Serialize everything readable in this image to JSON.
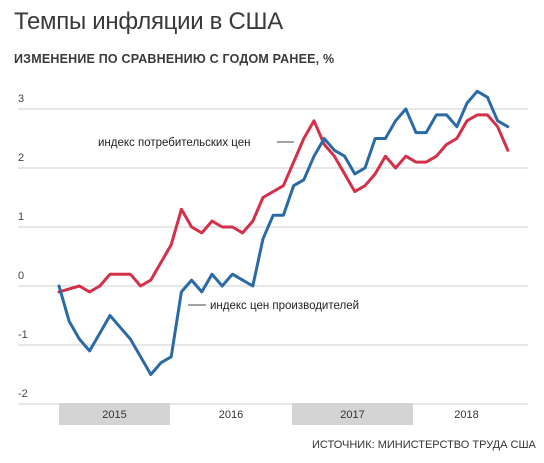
{
  "title": "Темпы инфляции в США",
  "subtitle": "ИЗМЕНЕНИЕ ПО СРАВНЕНИЮ С ГОДОМ РАНЕЕ, %",
  "source": "ИСТОЧНИК: МИНИСТЕРСТВО ТРУДА США",
  "colors": {
    "cpi": "#d43049",
    "ppi": "#2a6aa6",
    "grid": "#cfcfcf",
    "yearband": "#d4d4d4"
  },
  "chart_data": {
    "type": "line",
    "title": "Темпы инфляции в США",
    "subtitle": "ИЗМЕНЕНИЕ ПО СРАВНЕНИЮ С ГОДОМ РАНЕЕ, %",
    "xlabel": "",
    "ylabel": "",
    "ylim": [
      -2,
      3.5
    ],
    "yticks": [
      {
        "value": 3,
        "label": "3"
      },
      {
        "value": 2,
        "label": "2"
      },
      {
        "value": 1,
        "label": "1"
      },
      {
        "value": 0,
        "label": "0"
      },
      {
        "value": -1,
        "label": "-1"
      },
      {
        "value": -2,
        "label": "-2"
      }
    ],
    "years": [
      "2015",
      "2016",
      "2017",
      "2018"
    ],
    "x": [
      "2015-01",
      "2015-02",
      "2015-03",
      "2015-04",
      "2015-05",
      "2015-06",
      "2015-07",
      "2015-08",
      "2015-09",
      "2015-10",
      "2015-11",
      "2015-12",
      "2016-01",
      "2016-02",
      "2016-03",
      "2016-04",
      "2016-05",
      "2016-06",
      "2016-07",
      "2016-08",
      "2016-09",
      "2016-10",
      "2016-11",
      "2016-12",
      "2017-01",
      "2017-02",
      "2017-03",
      "2017-04",
      "2017-05",
      "2017-06",
      "2017-07",
      "2017-08",
      "2017-09",
      "2017-10",
      "2017-11",
      "2017-12",
      "2018-01",
      "2018-02",
      "2018-03",
      "2018-04",
      "2018-05",
      "2018-06",
      "2018-07",
      "2018-08",
      "2018-09"
    ],
    "series": [
      {
        "name": "индекс потребительских цен",
        "key": "cpi",
        "values": [
          -0.1,
          -0.05,
          0,
          -0.1,
          0,
          0.2,
          0.2,
          0.2,
          0,
          0.1,
          0.4,
          0.7,
          1.3,
          1.0,
          0.9,
          1.1,
          1.0,
          1.0,
          0.9,
          1.1,
          1.5,
          1.6,
          1.7,
          2.1,
          2.5,
          2.8,
          2.4,
          2.2,
          1.9,
          1.6,
          1.7,
          1.9,
          2.2,
          2.0,
          2.2,
          2.1,
          2.1,
          2.2,
          2.4,
          2.5,
          2.8,
          2.9,
          2.9,
          2.7,
          2.3
        ]
      },
      {
        "name": "индекс цен производителей",
        "key": "ppi",
        "values": [
          0,
          -0.6,
          -0.9,
          -1.1,
          -0.8,
          -0.5,
          -0.7,
          -0.9,
          -1.2,
          -1.5,
          -1.3,
          -1.2,
          -0.1,
          0.1,
          -0.1,
          0.2,
          0,
          0.2,
          0.1,
          0,
          0.8,
          1.2,
          1.2,
          1.7,
          1.8,
          2.2,
          2.5,
          2.3,
          2.2,
          1.9,
          2.0,
          2.5,
          2.5,
          2.8,
          3.0,
          2.6,
          2.6,
          2.9,
          2.9,
          2.7,
          3.1,
          3.3,
          3.2,
          2.8,
          2.7
        ]
      }
    ]
  }
}
